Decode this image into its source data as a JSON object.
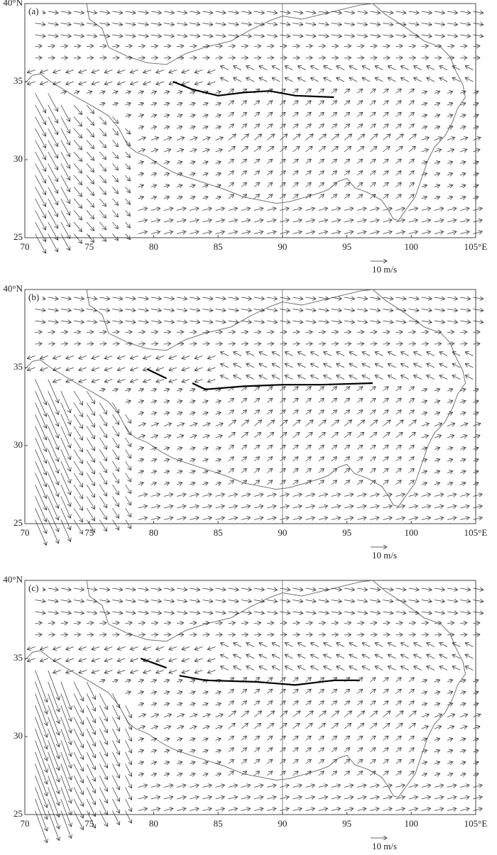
{
  "map": {
    "xticks": [
      70,
      75,
      80,
      85,
      90,
      95,
      100,
      {
        "value": 105,
        "label": "105°E"
      }
    ],
    "yticks": [
      25,
      30,
      35,
      {
        "value": 40,
        "label": "40°N"
      }
    ],
    "xlim": [
      70,
      105
    ],
    "ylim": [
      25,
      40
    ],
    "scale_label": "10 m/s",
    "panels": [
      {
        "label": "(a)",
        "shear_lines": [
          [
            [
              81.5,
              35.0
            ],
            [
              83,
              34.5
            ],
            [
              85,
              34.1
            ],
            [
              87,
              34.3
            ],
            [
              89,
              34.4
            ],
            [
              91,
              34.1
            ],
            [
              94,
              34.0
            ]
          ]
        ]
      },
      {
        "label": "(b)",
        "shear_lines": [
          [
            [
              79.5,
              34.9
            ],
            [
              81,
              34.3
            ]
          ],
          [
            [
              83,
              34.0
            ],
            [
              84,
              33.6
            ],
            [
              87,
              33.8
            ],
            [
              90,
              33.9
            ],
            [
              93,
              33.9
            ],
            [
              97,
              34.0
            ]
          ]
        ]
      },
      {
        "label": "(c)",
        "shear_lines": [
          [
            [
              79,
              35.0
            ],
            [
              81,
              34.4
            ]
          ],
          [
            [
              82,
              33.9
            ],
            [
              84,
              33.6
            ],
            [
              88,
              33.5
            ],
            [
              91,
              33.3
            ],
            [
              94,
              33.6
            ],
            [
              96,
              33.6
            ]
          ]
        ]
      }
    ]
  }
}
